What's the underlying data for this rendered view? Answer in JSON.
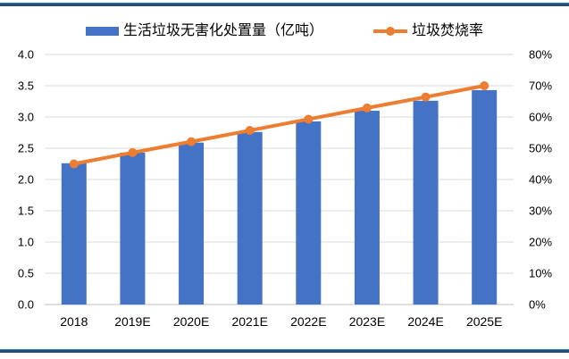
{
  "page": {
    "background": "#FFFFFF",
    "divider_color": "#1F4E79"
  },
  "legend": {
    "bar_label": "生活垃圾无害化处置量（亿吨）",
    "line_label": "垃圾焚烧率"
  },
  "chart_data": {
    "type": "bar",
    "combo": "bar+line",
    "title": "",
    "categories": [
      "2018",
      "2019E",
      "2020E",
      "2021E",
      "2022E",
      "2023E",
      "2024E",
      "2025E"
    ],
    "series": [
      {
        "name": "生活垃圾无害化处置量（亿吨）",
        "type": "bar",
        "axis": "left",
        "color": "#4472C4",
        "values": [
          2.26,
          2.43,
          2.59,
          2.76,
          2.93,
          3.1,
          3.26,
          3.43
        ]
      },
      {
        "name": "垃圾焚烧率",
        "type": "line",
        "axis": "right",
        "color": "#ED7D31",
        "unit": "%",
        "values": [
          45,
          48.6,
          52.1,
          55.7,
          59.3,
          62.9,
          66.4,
          70
        ]
      }
    ],
    "left_axis": {
      "min": 0,
      "max": 4,
      "step": 0.5,
      "tick_labels": [
        "0.0",
        "0.5",
        "1.0",
        "1.5",
        "2.0",
        "2.5",
        "3.0",
        "3.5",
        "4.0"
      ]
    },
    "right_axis": {
      "min": 0,
      "max": 80,
      "step": 10,
      "tick_labels": [
        "0%",
        "10%",
        "20%",
        "30%",
        "40%",
        "50%",
        "60%",
        "70%",
        "80%"
      ]
    },
    "grid": true,
    "gridline_color": "#D9D9D9",
    "baseline_color": "#BFBFBF",
    "legend_position": "top"
  }
}
